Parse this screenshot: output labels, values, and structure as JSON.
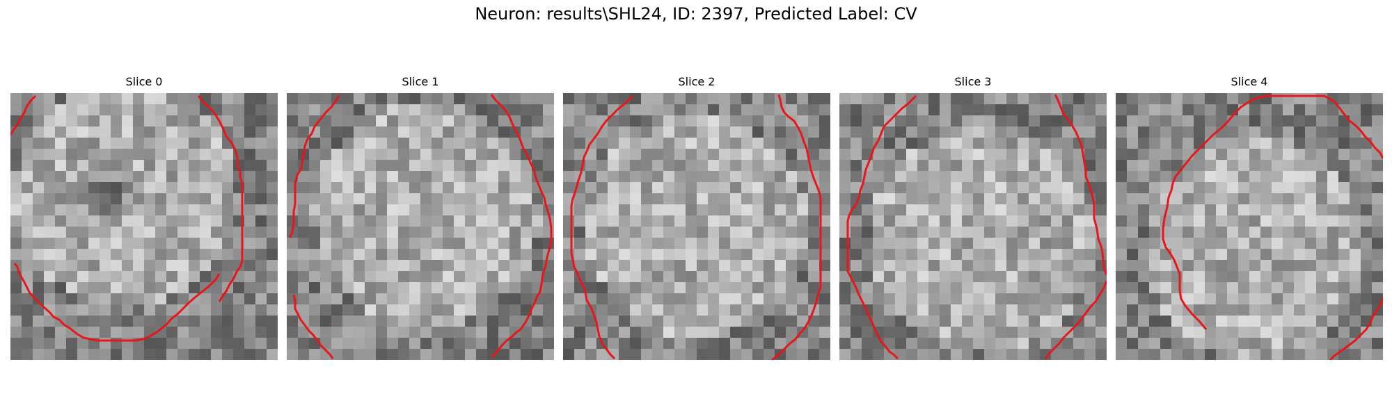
{
  "figure": {
    "title": "Neuron: results\\SHL24, ID: 2397, Predicted Label: CV"
  },
  "slices": [
    {
      "title": "Slice 0"
    },
    {
      "title": "Slice 1"
    },
    {
      "title": "Slice 2"
    },
    {
      "title": "Slice 3"
    },
    {
      "title": "Slice 4"
    }
  ],
  "colors": {
    "contour": "#e8161a",
    "colormap": "gray"
  }
}
